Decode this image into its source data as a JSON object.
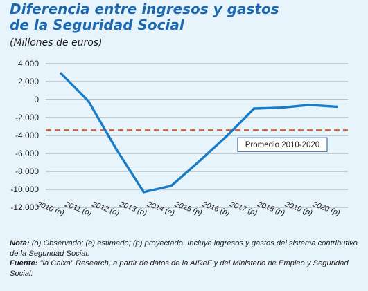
{
  "header": {
    "title_line1": "Diferencia entre ingresos y gastos",
    "title_line2": "de la Seguridad Social",
    "subtitle": "(Millones de euros)"
  },
  "colors": {
    "title": "#1b67b0",
    "line": "#1a7cc7",
    "average_line": "#e15a2a",
    "background": "#e8f4fc",
    "gridline": "#8c8c8c"
  },
  "chart_data": {
    "type": "line",
    "title": "",
    "xlabel": "",
    "ylabel": "",
    "categories": [
      "2010 (o)",
      "2011 (o)",
      "2012 (o)",
      "2013 (o)",
      "2014 (e)",
      "2015 (p)",
      "2016 (p)",
      "2017 (p)",
      "2018 (p)",
      "2019 (p)",
      "2020 (p)"
    ],
    "series": [
      {
        "values": [
          2900,
          -200,
          -5500,
          -10300,
          -9600,
          -6900,
          -4100,
          -1000,
          -900,
          -600,
          -800
        ]
      }
    ],
    "reference_lines": [
      {
        "label": "Promedio 2010-2020",
        "value": -3400,
        "style": "dashed"
      }
    ],
    "ylim": [
      -12000,
      4000
    ],
    "yticks": [
      4000,
      2000,
      0,
      -2000,
      -4000,
      -6000,
      -8000,
      -10000,
      -12000
    ],
    "ytick_labels": [
      "4.000",
      "2.000",
      "0",
      "-2.000",
      "-4.000",
      "-6.000",
      "-8.000",
      "-10.000",
      "-12.000"
    ],
    "grid": "horizontal",
    "legend": "none"
  },
  "notes": {
    "nota_label": "Nota:",
    "nota_text": "(o) Observado; (e) estimado; (p) proyectado. Incluye ingresos y gastos del sistema contributivo de la Seguridad Social.",
    "fuente_label": "Fuente:",
    "fuente_text": "\"la Caixa\" Research, a partir de datos de la AIReF y del Ministerio de Empleo y Seguridad Social."
  }
}
